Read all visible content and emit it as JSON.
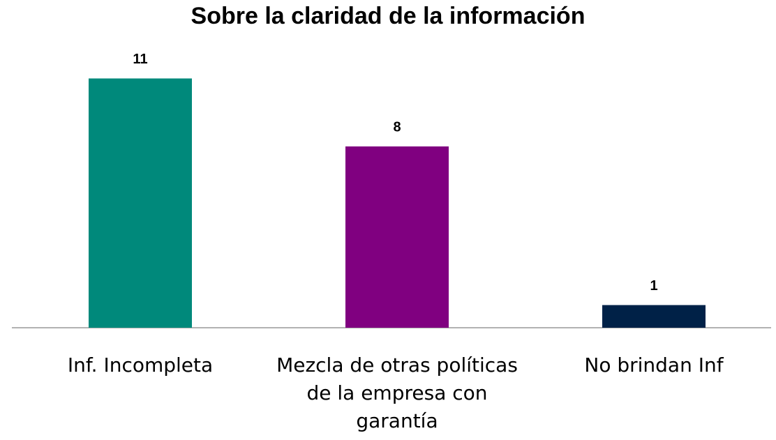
{
  "chart_data": {
    "type": "bar",
    "title": "Sobre la claridad de la información",
    "categories": [
      "Inf. Incompleta",
      "Mezcla de otras políticas de la empresa con garantía",
      "No brindan Inf"
    ],
    "values": [
      11,
      8,
      1
    ],
    "colors": [
      "#00897b",
      "#800080",
      "#002147"
    ],
    "ylim": [
      0,
      12
    ],
    "grid": false
  }
}
